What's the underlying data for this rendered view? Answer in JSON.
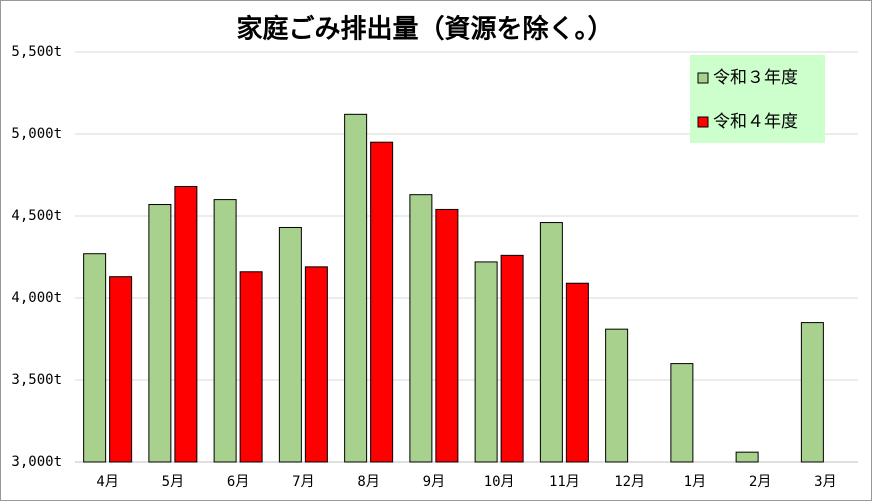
{
  "chart_data": {
    "type": "bar",
    "title": "家庭ごみ排出量（資源を除く。）",
    "categories": [
      "4月",
      "5月",
      "6月",
      "7月",
      "8月",
      "9月",
      "10月",
      "11月",
      "12月",
      "1月",
      "2月",
      "3月"
    ],
    "series": [
      {
        "name": "令和３年度",
        "color": "#a9d18e",
        "values": [
          4270,
          4570,
          4600,
          4430,
          5120,
          4630,
          4220,
          4460,
          3810,
          3600,
          3060,
          3850
        ]
      },
      {
        "name": "令和４年度",
        "color": "#ff0000",
        "values": [
          4130,
          4680,
          4160,
          4190,
          4950,
          4540,
          4260,
          4090,
          null,
          null,
          null,
          null
        ]
      }
    ],
    "ylim": [
      3000,
      5500
    ],
    "yticks": [
      {
        "value": 3000,
        "label": "3,000t"
      },
      {
        "value": 3500,
        "label": "3,500t"
      },
      {
        "value": 4000,
        "label": "4,000t"
      },
      {
        "value": 4500,
        "label": "4,500t"
      },
      {
        "value": 5000,
        "label": "5,000t"
      },
      {
        "value": 5500,
        "label": "5,500t"
      }
    ],
    "grid": true,
    "legend": "top-right"
  }
}
